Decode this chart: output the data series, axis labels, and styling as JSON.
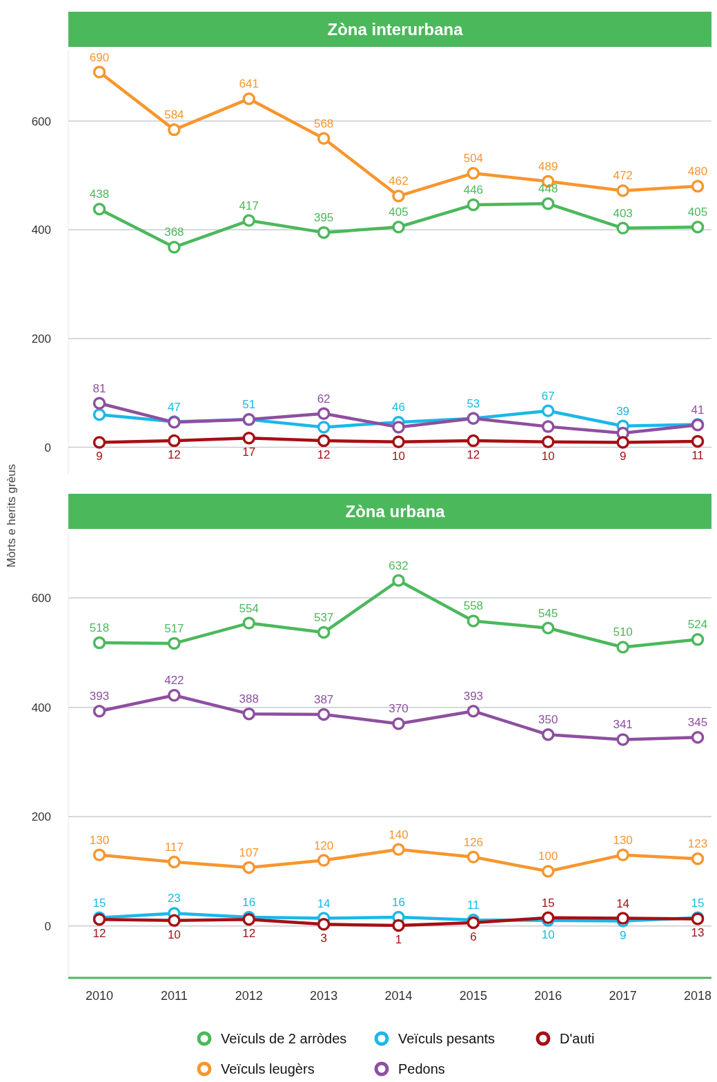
{
  "chart_data": [
    {
      "type": "line",
      "title": "Zòna interurbana",
      "ylabel": "Mòrts e herits grèus",
      "categories": [
        "2010",
        "2011",
        "2012",
        "2013",
        "2014",
        "2015",
        "2016",
        "2017",
        "2018"
      ],
      "ylim": [
        -50,
        730
      ],
      "yticks": [
        0,
        200,
        400,
        600
      ],
      "grid": "y",
      "marker": "circle",
      "tick_labels": "y",
      "legend": false,
      "series": [
        {
          "color": "#4cb85c",
          "values": [
            438,
            368,
            417,
            395,
            405,
            446,
            448,
            403,
            405
          ],
          "value_labels": [
            "438",
            "368",
            "417",
            "395",
            "405",
            "446",
            "448",
            "403",
            "405"
          ]
        },
        {
          "color": "#f7962e",
          "values": [
            690,
            584,
            641,
            568,
            462,
            504,
            489,
            472,
            480
          ],
          "value_labels": [
            "690",
            "584",
            "641",
            "568",
            "462",
            "504",
            "489",
            "472",
            "480"
          ]
        },
        {
          "color": "#1bb8e8",
          "values": [
            60,
            47,
            51,
            37,
            46,
            53,
            67,
            39,
            42
          ],
          "value_labels": [
            null,
            "47",
            "51",
            null,
            "46",
            "53",
            "67",
            "39",
            null
          ]
        },
        {
          "color": "#8e4f9f",
          "values": [
            81,
            46,
            51,
            62,
            37,
            53,
            38,
            26,
            41
          ],
          "value_labels": [
            "81",
            null,
            null,
            "62",
            null,
            null,
            null,
            null,
            "41"
          ]
        },
        {
          "color": "#a50f15",
          "values": [
            9,
            12,
            17,
            12,
            10,
            12,
            10,
            9,
            11
          ],
          "value_labels": [
            "9",
            "12",
            "17",
            "12",
            "10",
            "12",
            "10",
            "9",
            "11"
          ]
        }
      ]
    },
    {
      "type": "line",
      "title": "Zòna urbana",
      "categories": [
        "2010",
        "2011",
        "2012",
        "2013",
        "2014",
        "2015",
        "2016",
        "2017",
        "2018"
      ],
      "ylim": [
        -95,
        720
      ],
      "yticks": [
        0,
        200,
        400,
        600
      ],
      "grid": "y",
      "marker": "circle",
      "legend": "bottom",
      "data_labels": true,
      "series": [
        {
          "name": "Veïculs de 2 arròdes",
          "color": "#4cb85c",
          "values": [
            518,
            517,
            554,
            537,
            632,
            558,
            545,
            510,
            524
          ]
        },
        {
          "name": "Veïculs leugèrs",
          "color": "#f7962e",
          "values": [
            130,
            117,
            107,
            120,
            140,
            126,
            100,
            130,
            123
          ]
        },
        {
          "name": "Veïculs pesants",
          "color": "#1bb8e8",
          "values": [
            15,
            23,
            16,
            14,
            16,
            11,
            10,
            9,
            15
          ]
        },
        {
          "name": "Pedons",
          "color": "#8e4f9f",
          "values": [
            393,
            422,
            388,
            387,
            370,
            393,
            350,
            341,
            345
          ]
        },
        {
          "name": "D'auti",
          "color": "#a50f15",
          "values": [
            12,
            10,
            12,
            3,
            1,
            6,
            15,
            14,
            13
          ]
        }
      ]
    }
  ]
}
